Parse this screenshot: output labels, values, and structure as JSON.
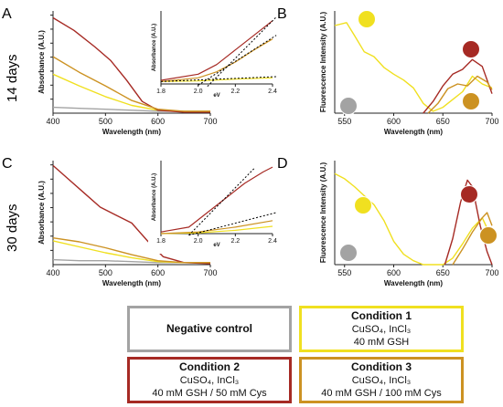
{
  "panel_labels": [
    "A",
    "B",
    "C",
    "D"
  ],
  "row_labels": [
    "14 days",
    "30 days"
  ],
  "colors": {
    "negative": "#a3a3a3",
    "condition1": "#f0e020",
    "condition2": "#a62a24",
    "condition3": "#cc9222",
    "axis": "#222222"
  },
  "legend": {
    "negative": {
      "title": "Negative control",
      "lines": []
    },
    "condition1": {
      "title": "Condition 1",
      "lines": [
        "CuSO₄, InCl₃",
        "40 mM GSH"
      ]
    },
    "condition2": {
      "title": "Condition 2",
      "lines": [
        "CuSO₄, InCl₃",
        "40 mM GSH / 50 mM Cys"
      ]
    },
    "condition3": {
      "title": "Condition 3",
      "lines": [
        "CuSO₄, InCl₃",
        "40 mM GSH / 100 mM Cys"
      ]
    }
  },
  "chart_data": [
    {
      "id": "A",
      "type": "line",
      "xlabel": "Wavelength (nm)",
      "ylabel": "Absorbance (A.U.)",
      "xlim": [
        400,
        700
      ],
      "xticks": [
        400,
        500,
        600,
        700
      ],
      "series": [
        {
          "name": "Negative control",
          "x": [
            400,
            450,
            500,
            550,
            600,
            650,
            700
          ],
          "y": [
            0.06,
            0.05,
            0.04,
            0.03,
            0.02,
            0.02,
            0.02
          ]
        },
        {
          "name": "Condition 1",
          "x": [
            400,
            450,
            500,
            550,
            600,
            650,
            700
          ],
          "y": [
            0.4,
            0.28,
            0.17,
            0.08,
            0.03,
            0.02,
            0.02
          ]
        },
        {
          "name": "Condition 2",
          "x": [
            400,
            440,
            480,
            510,
            540,
            570,
            600,
            650,
            700
          ],
          "y": [
            0.98,
            0.85,
            0.68,
            0.54,
            0.34,
            0.12,
            0.03,
            0.01,
            0.01
          ]
        },
        {
          "name": "Condition 3",
          "x": [
            400,
            450,
            500,
            550,
            600,
            650,
            700
          ],
          "y": [
            0.58,
            0.42,
            0.28,
            0.13,
            0.04,
            0.02,
            0.02
          ]
        }
      ],
      "inset": {
        "xlabel": "eV",
        "ylabel": "Absorbance (A.U.)",
        "xlim": [
          1.8,
          2.4
        ],
        "xticks": [
          1.8,
          2.0,
          2.2,
          2.4
        ],
        "xtick_labels": [
          "1.8",
          "2.0",
          "2.2",
          "2.4"
        ],
        "series": [
          {
            "name": "Condition 1",
            "x": [
              1.8,
              2.0,
              2.2,
              2.4
            ],
            "y": [
              0.02,
              0.025,
              0.04,
              0.05
            ]
          },
          {
            "name": "Condition 2",
            "x": [
              1.8,
              2.0,
              2.1,
              2.2,
              2.3,
              2.4
            ],
            "y": [
              0.03,
              0.08,
              0.16,
              0.28,
              0.4,
              0.52
            ]
          },
          {
            "name": "Condition 3",
            "x": [
              1.8,
              2.0,
              2.1,
              2.2,
              2.3,
              2.4
            ],
            "y": [
              0.02,
              0.05,
              0.1,
              0.18,
              0.28,
              0.37
            ]
          }
        ],
        "tangents": [
          {
            "x": [
              2.05,
              2.42
            ],
            "y": [
              -0.02,
              0.55
            ]
          },
          {
            "x": [
              2.0,
              2.42
            ],
            "y": [
              -0.01,
              0.4
            ]
          },
          {
            "x": [
              1.8,
              2.42
            ],
            "y": [
              0.02,
              0.06
            ]
          }
        ]
      }
    },
    {
      "id": "B",
      "type": "line",
      "xlabel": "Wavelength (nm)",
      "ylabel": "Fluorescence Intensity (A.U.)",
      "xlim": [
        540,
        700
      ],
      "xticks": [
        550,
        600,
        650,
        700
      ],
      "series": [
        {
          "name": "Condition 1",
          "x": [
            540,
            552,
            560,
            570,
            580,
            590,
            600,
            610,
            620,
            630,
            640,
            650,
            660,
            670,
            680,
            690,
            700
          ],
          "y": [
            0.9,
            0.93,
            0.8,
            0.63,
            0.58,
            0.47,
            0.4,
            0.34,
            0.26,
            0.1,
            0.02,
            0.06,
            0.14,
            0.22,
            0.38,
            0.3,
            0.26
          ]
        },
        {
          "name": "Condition 2",
          "x": [
            630,
            640,
            650,
            660,
            670,
            680,
            690,
            700
          ],
          "y": [
            0.0,
            0.12,
            0.28,
            0.4,
            0.45,
            0.55,
            0.48,
            0.2
          ]
        },
        {
          "name": "Condition 3",
          "x": [
            635,
            645,
            655,
            665,
            675,
            685,
            695,
            700
          ],
          "y": [
            0.0,
            0.1,
            0.25,
            0.3,
            0.28,
            0.38,
            0.32,
            0.24
          ]
        }
      ],
      "markers": [
        "Condition 1",
        "Condition 2",
        "Condition 3",
        "Negative control"
      ]
    },
    {
      "id": "C",
      "type": "line",
      "xlabel": "Wavelength (nm)",
      "ylabel": "Absorbance (A.U.)",
      "xlim": [
        400,
        700
      ],
      "xticks": [
        400,
        500,
        600,
        700
      ],
      "series": [
        {
          "name": "Negative control",
          "x": [
            400,
            450,
            500,
            550,
            600,
            650,
            700
          ],
          "y": [
            0.05,
            0.04,
            0.04,
            0.03,
            0.02,
            0.02,
            0.02
          ]
        },
        {
          "name": "Condition 1",
          "x": [
            400,
            450,
            500,
            550,
            600,
            650,
            700
          ],
          "y": [
            0.24,
            0.18,
            0.12,
            0.07,
            0.03,
            0.02,
            0.02
          ]
        },
        {
          "name": "Condition 2",
          "x": [
            400,
            430,
            460,
            490,
            520,
            550,
            580,
            610,
            650,
            700
          ],
          "y": [
            1.0,
            0.86,
            0.72,
            0.58,
            0.5,
            0.42,
            0.24,
            0.08,
            0.02,
            0.01
          ]
        },
        {
          "name": "Condition 3",
          "x": [
            400,
            450,
            500,
            550,
            600,
            650,
            700
          ],
          "y": [
            0.27,
            0.23,
            0.17,
            0.1,
            0.04,
            0.02,
            0.02
          ]
        }
      ],
      "inset": {
        "xlabel": "eV",
        "ylabel": "Absorbance (A.U.)",
        "xlim": [
          1.8,
          2.4
        ],
        "xticks": [
          1.8,
          2.0,
          2.2,
          2.4
        ],
        "xtick_labels": [
          "1.8",
          "2.0",
          "2.2",
          "2.4"
        ],
        "series": [
          {
            "name": "Condition 1",
            "x": [
              1.8,
              2.0,
              2.2,
              2.4
            ],
            "y": [
              0.0,
              0.01,
              0.04,
              0.09
            ]
          },
          {
            "name": "Condition 2",
            "x": [
              1.8,
              1.95,
              2.05,
              2.15,
              2.25,
              2.35,
              2.4
            ],
            "y": [
              0.02,
              0.08,
              0.26,
              0.44,
              0.62,
              0.76,
              0.82
            ]
          },
          {
            "name": "Condition 3",
            "x": [
              1.8,
              2.0,
              2.2,
              2.4
            ],
            "y": [
              0.0,
              0.02,
              0.08,
              0.16
            ]
          }
        ],
        "tangents": [
          {
            "x": [
              1.95,
              2.3
            ],
            "y": [
              -0.02,
              0.8
            ]
          },
          {
            "x": [
              1.95,
              2.42
            ],
            "y": [
              -0.02,
              0.26
            ]
          }
        ]
      }
    },
    {
      "id": "D",
      "type": "line",
      "xlabel": "Wavelength (nm)",
      "ylabel": "Fluorescence Intensity (A.U.)",
      "xlim": [
        540,
        700
      ],
      "xticks": [
        550,
        600,
        650,
        700
      ],
      "series": [
        {
          "name": "Condition 1",
          "x": [
            540,
            550,
            560,
            570,
            580,
            590,
            600,
            610,
            620,
            630,
            640,
            650,
            660,
            670,
            680,
            690,
            700
          ],
          "y": [
            0.7,
            0.66,
            0.6,
            0.53,
            0.46,
            0.34,
            0.18,
            0.08,
            0.03,
            0.0,
            0.0,
            0.0,
            0.05,
            0.16,
            0.28,
            0.36,
            0.2
          ]
        },
        {
          "name": "Condition 2",
          "x": [
            652,
            660,
            668,
            675,
            680,
            688,
            695,
            700
          ],
          "y": [
            0.0,
            0.2,
            0.48,
            0.65,
            0.6,
            0.3,
            0.1,
            0.0
          ]
        },
        {
          "name": "Condition 3",
          "x": [
            660,
            670,
            680,
            690,
            695,
            700
          ],
          "y": [
            0.0,
            0.12,
            0.25,
            0.36,
            0.4,
            0.3
          ]
        }
      ],
      "markers": [
        "Condition 1",
        "Condition 2",
        "Condition 3",
        "Negative control"
      ]
    }
  ]
}
